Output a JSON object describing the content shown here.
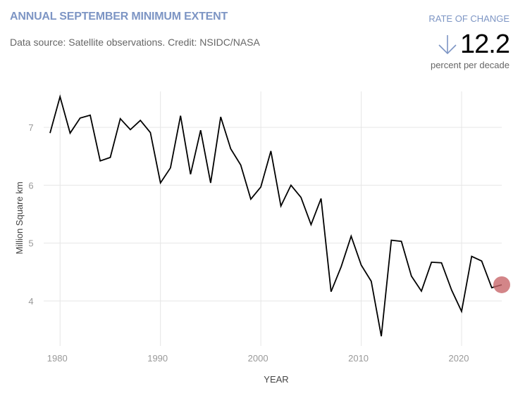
{
  "header": {
    "title": "ANNUAL SEPTEMBER MINIMUM EXTENT",
    "subtitle": "Data source: Satellite observations. Credit: NSIDC/NASA"
  },
  "rate": {
    "label": "RATE OF CHANGE",
    "icon": "arrow-down-icon",
    "value": "12.2",
    "unit": "percent per decade"
  },
  "colors": {
    "title": "#7d95c4",
    "line": "#000000",
    "highlight": "#c8666a",
    "grid": "#e6e6e6"
  },
  "chart_data": {
    "type": "line",
    "title": "ANNUAL SEPTEMBER MINIMUM EXTENT",
    "xlabel": "YEAR",
    "ylabel": "Million Square km",
    "xlim": [
      1979,
      2024
    ],
    "ylim": [
      3.3,
      7.6
    ],
    "xticks": [
      1980,
      1990,
      2000,
      2010,
      2020
    ],
    "yticks": [
      4,
      5,
      6,
      7
    ],
    "grid": true,
    "highlight_last_point": true,
    "x": [
      1979,
      1980,
      1981,
      1982,
      1983,
      1984,
      1985,
      1986,
      1987,
      1988,
      1989,
      1990,
      1991,
      1992,
      1993,
      1994,
      1995,
      1996,
      1997,
      1998,
      1999,
      2000,
      2001,
      2002,
      2003,
      2004,
      2005,
      2006,
      2007,
      2008,
      2009,
      2010,
      2011,
      2012,
      2013,
      2014,
      2015,
      2016,
      2017,
      2018,
      2019,
      2020,
      2021,
      2022,
      2023,
      2024
    ],
    "values": [
      6.9,
      7.53,
      6.9,
      7.16,
      7.21,
      6.42,
      6.48,
      7.15,
      6.96,
      7.12,
      6.91,
      6.04,
      6.3,
      7.2,
      6.19,
      6.95,
      6.04,
      7.18,
      6.63,
      6.35,
      5.76,
      5.97,
      6.59,
      5.64,
      6.0,
      5.79,
      5.32,
      5.77,
      4.16,
      4.59,
      5.12,
      4.62,
      4.34,
      3.39,
      5.05,
      5.03,
      4.43,
      4.17,
      4.67,
      4.66,
      4.19,
      3.82,
      4.77,
      4.69,
      4.23,
      4.28
    ]
  }
}
